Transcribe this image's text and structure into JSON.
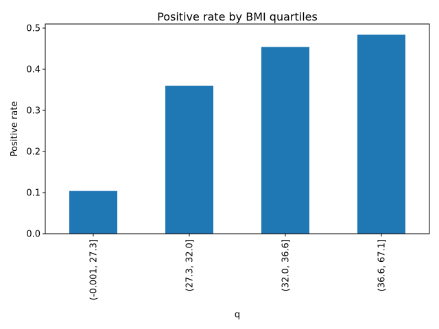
{
  "chart_data": {
    "type": "bar",
    "title": "Positive rate by BMI quartiles",
    "xlabel": "q",
    "ylabel": "Positive rate",
    "categories": [
      "(-0.001, 27.3]",
      "(27.3, 32.0]",
      "(32.0, 36.6]",
      "(36.6, 67.1]"
    ],
    "values": [
      0.104,
      0.36,
      0.454,
      0.484
    ],
    "ylim": [
      0,
      0.51
    ],
    "yticks": [
      0.0,
      0.1,
      0.2,
      0.3,
      0.4,
      0.5
    ],
    "ytick_labels": [
      "0.0",
      "0.1",
      "0.2",
      "0.3",
      "0.4",
      "0.5"
    ],
    "grid": false,
    "bar_color": "#1f77b4"
  }
}
